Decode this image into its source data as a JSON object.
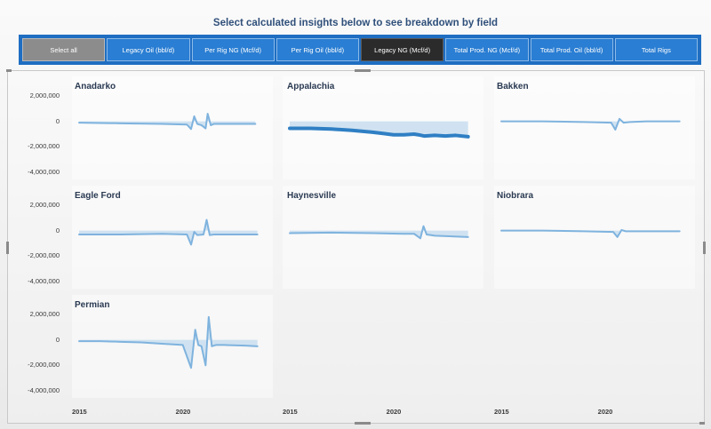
{
  "header": {
    "title": "Select calculated insights below to see breakdown by field"
  },
  "slicer": {
    "buttons": [
      {
        "label": "Select all",
        "state": "grey"
      },
      {
        "label": "Legacy Oil (bbl/d)",
        "state": "normal"
      },
      {
        "label": "Per Rig NG (Mcf/d)",
        "state": "normal"
      },
      {
        "label": "Per Rig Oil (bbl/d)",
        "state": "normal"
      },
      {
        "label": "Legacy NG (Mcf/d)",
        "state": "selected"
      },
      {
        "label": "Total Prod. NG (Mcf/d)",
        "state": "normal"
      },
      {
        "label": "Total Prod. Oil (bbl/d)",
        "state": "normal"
      },
      {
        "label": "Total Rigs",
        "state": "normal"
      }
    ]
  },
  "colors": {
    "accent": "#1f6ec2",
    "line": "#7fb3de",
    "line_bold": "#2f7fc4",
    "band": "#c6dcef",
    "selected": "#2b2b2b",
    "muted_button": "#8c8c8c"
  },
  "y_ticks": [
    "2,000,000",
    "0",
    "-2,000,000",
    "-4,000,000"
  ],
  "x_ticks": [
    "2015",
    "2020"
  ],
  "chart_data": {
    "type": "line",
    "xlim": [
      2015,
      2024
    ],
    "ylim": [
      -4000000,
      2000000
    ],
    "small_multiples": [
      {
        "title": "Anadarko",
        "x": [
          2015,
          2017,
          2019,
          2020.2,
          2020.4,
          2020.55,
          2020.7,
          2020.9,
          2021.1,
          2021.2,
          2021.35,
          2021.5,
          2021.7,
          2022,
          2023.5
        ],
        "y": [
          -100000,
          -150000,
          -200000,
          -250000,
          -600000,
          400000,
          -200000,
          -300000,
          -550000,
          600000,
          -300000,
          -200000,
          -200000,
          -200000,
          -200000
        ]
      },
      {
        "title": "Appalachia",
        "bold": true,
        "x": [
          2015,
          2016,
          2017,
          2018,
          2019,
          2019.5,
          2020,
          2020.5,
          2021,
          2021.2,
          2021.5,
          2022,
          2022.5,
          2023,
          2023.6
        ],
        "y": [
          -550000,
          -550000,
          -600000,
          -700000,
          -850000,
          -950000,
          -1050000,
          -1050000,
          -1000000,
          -1050000,
          -1150000,
          -1100000,
          -1150000,
          -1100000,
          -1200000
        ]
      },
      {
        "title": "Bakken",
        "x": [
          2015,
          2017,
          2019,
          2020.3,
          2020.5,
          2020.7,
          2020.9,
          2021.2,
          2022,
          2023.6
        ],
        "y": [
          0,
          0,
          -50000,
          -100000,
          -650000,
          200000,
          -100000,
          -50000,
          0,
          0
        ]
      },
      {
        "title": "Eagle Ford",
        "x": [
          2015,
          2017,
          2019,
          2020.2,
          2020.4,
          2020.55,
          2020.7,
          2021,
          2021.15,
          2021.3,
          2021.5,
          2022,
          2023.6
        ],
        "y": [
          -300000,
          -300000,
          -250000,
          -300000,
          -1100000,
          -100000,
          -350000,
          -300000,
          850000,
          -350000,
          -300000,
          -300000,
          -300000
        ]
      },
      {
        "title": "Haynesville",
        "x": [
          2015,
          2017,
          2019,
          2020.5,
          2021,
          2021.3,
          2021.45,
          2021.6,
          2022,
          2023.6
        ],
        "y": [
          -200000,
          -150000,
          -200000,
          -250000,
          -250000,
          -600000,
          350000,
          -300000,
          -400000,
          -500000
        ]
      },
      {
        "title": "Niobrara",
        "x": [
          2015,
          2017,
          2019,
          2020.4,
          2020.6,
          2020.8,
          2021,
          2022,
          2023.6
        ],
        "y": [
          0,
          0,
          -50000,
          -100000,
          -500000,
          50000,
          -50000,
          -50000,
          -50000
        ]
      },
      {
        "title": "Permian",
        "x": [
          2015,
          2016,
          2017,
          2018,
          2019,
          2020,
          2020.4,
          2020.6,
          2020.75,
          2020.9,
          2021.1,
          2021.25,
          2021.4,
          2021.6,
          2022,
          2023,
          2023.6
        ],
        "y": [
          -100000,
          -100000,
          -150000,
          -200000,
          -300000,
          -400000,
          -2200000,
          800000,
          -400000,
          -500000,
          -2000000,
          1800000,
          -500000,
          -400000,
          -400000,
          -450000,
          -500000
        ]
      }
    ]
  }
}
